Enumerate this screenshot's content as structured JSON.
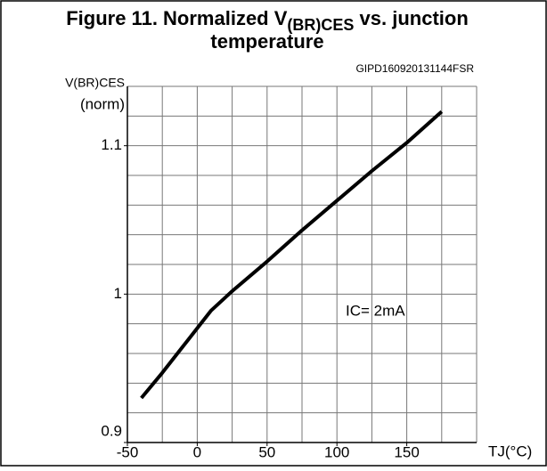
{
  "chart_data": {
    "type": "line",
    "title": {
      "main": "Figure 11. Normalized V",
      "sub": "(BR)CES",
      "rest": " vs. junction",
      "line2": "temperature"
    },
    "code": "GIPD160920131144FSR",
    "ylabel": [
      "V(BR)CES",
      "(norm)"
    ],
    "xlabel": "TJ(°C)",
    "annotation": "IC= 2mA",
    "x": [
      -40,
      -25,
      -10,
      0,
      10,
      25,
      50,
      75,
      100,
      125,
      150,
      175
    ],
    "values": [
      0.93,
      0.947,
      0.965,
      0.977,
      0.989,
      1.002,
      1.022,
      1.043,
      1.063,
      1.083,
      1.102,
      1.123
    ],
    "color": "#000000",
    "xlim": [
      -50,
      200
    ],
    "xticks": [
      -50,
      0,
      50,
      100,
      150
    ],
    "ylim": [
      0.9,
      1.14
    ],
    "yticks": [
      0.9,
      1,
      1.1
    ],
    "xgrid": [
      -25,
      0,
      25,
      50,
      75,
      100,
      125,
      150,
      175,
      200
    ],
    "ygrid": [
      0.92,
      0.94,
      0.96,
      0.98,
      1,
      1.02,
      1.04,
      1.06,
      1.08,
      1.1,
      1.12,
      1.14
    ],
    "grid": true
  }
}
